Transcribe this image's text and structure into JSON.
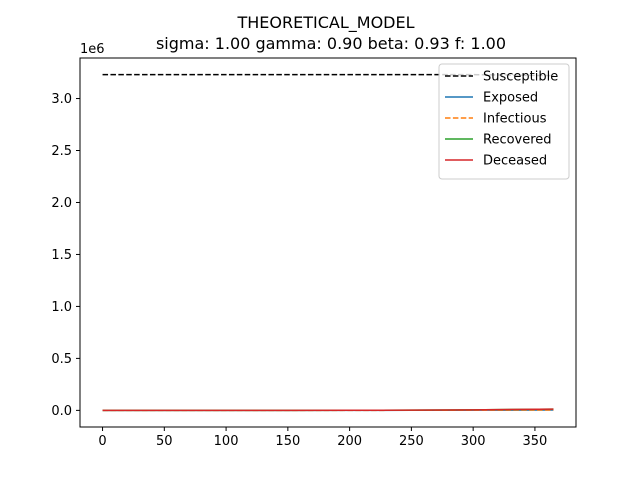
{
  "chart_data": {
    "type": "line",
    "title": "THEORETICAL_MODEL",
    "subtitle": "sigma: 1.00 gamma: 0.90 beta: 0.93 f: 1.00",
    "xlabel": "",
    "ylabel": "",
    "y_offset_label": "1e6",
    "xlim": [
      -18.25,
      383.25
    ],
    "ylim": [
      -0.16,
      3.39
    ],
    "x_ticks": [
      0,
      50,
      100,
      150,
      200,
      250,
      300,
      350
    ],
    "x_tick_labels": [
      "0",
      "50",
      "100",
      "150",
      "200",
      "250",
      "300",
      "350"
    ],
    "y_ticks": [
      0.0,
      0.5,
      1.0,
      1.5,
      2.0,
      2.5,
      3.0
    ],
    "y_tick_labels": [
      "0.0",
      "0.5",
      "1.0",
      "1.5",
      "2.0",
      "2.5",
      "3.0"
    ],
    "grid": false,
    "legend_position": "top-right",
    "series": [
      {
        "name": "Susceptible",
        "color": "#000000",
        "style": "dashed",
        "x": [
          0,
          50,
          100,
          150,
          200,
          250,
          300,
          365
        ],
        "values": [
          3.23,
          3.23,
          3.23,
          3.23,
          3.23,
          3.23,
          3.23,
          3.22
        ]
      },
      {
        "name": "Exposed",
        "color": "#1f77b4",
        "style": "solid",
        "x": [
          0,
          50,
          100,
          150,
          200,
          250,
          300,
          365
        ],
        "values": [
          0.0,
          0.0,
          0.0,
          0.0,
          0.0,
          0.001,
          0.002,
          0.004
        ]
      },
      {
        "name": "Infectious",
        "color": "#ff7f0e",
        "style": "dashed",
        "x": [
          0,
          50,
          100,
          150,
          200,
          250,
          300,
          365
        ],
        "values": [
          0.0,
          0.0,
          0.0,
          0.0,
          0.0,
          0.001,
          0.002,
          0.004
        ]
      },
      {
        "name": "Recovered",
        "color": "#2ca02c",
        "style": "solid",
        "x": [
          0,
          50,
          100,
          150,
          200,
          250,
          300,
          365
        ],
        "values": [
          0.0,
          0.0,
          0.0,
          0.0,
          0.001,
          0.002,
          0.005,
          0.012
        ]
      },
      {
        "name": "Deceased",
        "color": "#d62728",
        "style": "solid",
        "x": [
          0,
          50,
          100,
          150,
          200,
          250,
          300,
          365
        ],
        "values": [
          0.0,
          0.0,
          0.0,
          0.0,
          0.001,
          0.002,
          0.005,
          0.012
        ]
      }
    ]
  }
}
